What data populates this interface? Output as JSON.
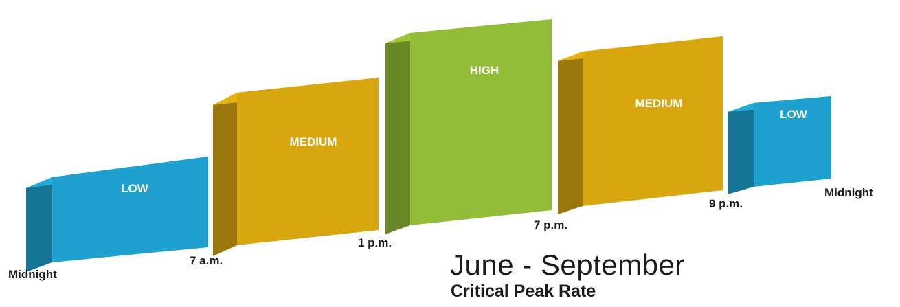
{
  "periods": [
    {
      "level": "LOW",
      "color": "#1ea1cf"
    },
    {
      "level": "MEDIUM",
      "color": "#d8a710"
    },
    {
      "level": "HIGH",
      "color": "#93bc38"
    },
    {
      "level": "MEDIUM",
      "color": "#d8a710"
    },
    {
      "level": "LOW",
      "color": "#1ea1cf"
    }
  ],
  "time_labels": [
    "Midnight",
    "7 a.m.",
    "1 p.m.",
    "7 p.m.",
    "9 p.m.",
    "Midnight"
  ],
  "title": "June - September",
  "subtitle": "Critical Peak Rate"
}
